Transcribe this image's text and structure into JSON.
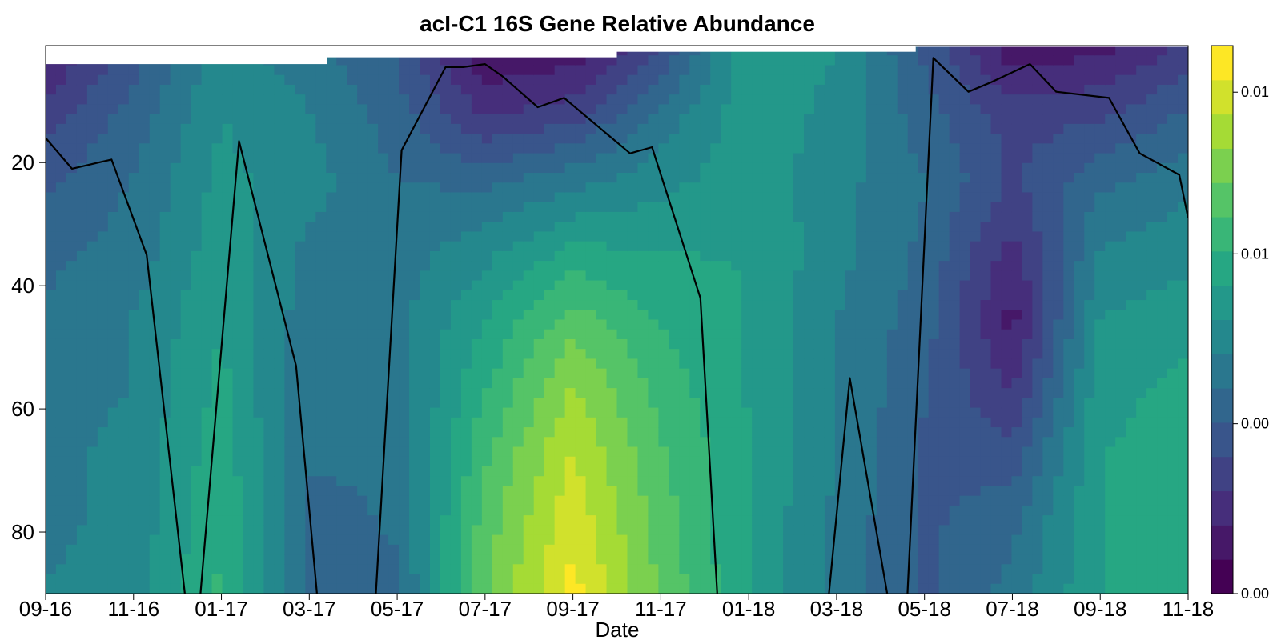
{
  "chart_data": {
    "type": "heatmap",
    "subtype": "filled-contour-with-line",
    "title": "acI-C1 16S Gene Relative Abundance",
    "xlabel": "Date",
    "ylabel": "",
    "x_tick_labels": [
      "09-16",
      "11-16",
      "01-17",
      "03-17",
      "05-17",
      "07-17",
      "09-17",
      "11-17",
      "01-18",
      "03-18",
      "05-18",
      "07-18",
      "09-18",
      "11-18"
    ],
    "y_ticks": [
      20,
      40,
      60,
      80
    ],
    "ylim": [
      90,
      1
    ],
    "y_inverted": true,
    "colormap": "viridis",
    "colors": [
      "#440154",
      "#472c7a",
      "#3b518b",
      "#2c718e",
      "#21908d",
      "#27ad81",
      "#5cc863",
      "#aadc32",
      "#fde725"
    ],
    "colorbar": {
      "tick_labels": [
        "0.00",
        "0.00",
        "0.01",
        "0.01"
      ],
      "levels": 16
    },
    "contour_columns": [
      {
        "x": 0.0,
        "values": [
          0.1,
          0.22,
          0.3,
          0.36,
          0.38,
          0.4,
          0.42,
          0.42,
          0.44
        ]
      },
      {
        "x": 1.0,
        "values": [
          0.28,
          0.34,
          0.38,
          0.4,
          0.44,
          0.44,
          0.46,
          0.46,
          0.48
        ]
      },
      {
        "x": 2.0,
        "values": [
          0.46,
          0.5,
          0.52,
          0.54,
          0.56,
          0.58,
          0.6,
          0.62,
          0.64
        ]
      },
      {
        "x": 3.0,
        "values": [
          0.4,
          0.44,
          0.46,
          0.42,
          0.4,
          0.38,
          0.38,
          0.36,
          0.36
        ]
      },
      {
        "x": 4.0,
        "values": [
          0.3,
          0.34,
          0.38,
          0.4,
          0.42,
          0.4,
          0.38,
          0.38,
          0.36
        ]
      },
      {
        "x": 5.0,
        "values": [
          0.06,
          0.18,
          0.36,
          0.48,
          0.56,
          0.62,
          0.68,
          0.72,
          0.74
        ]
      },
      {
        "x": 6.0,
        "values": [
          0.08,
          0.22,
          0.42,
          0.58,
          0.72,
          0.82,
          0.88,
          0.92,
          0.96
        ]
      },
      {
        "x": 7.0,
        "values": [
          0.24,
          0.4,
          0.48,
          0.56,
          0.62,
          0.66,
          0.7,
          0.72,
          0.74
        ]
      },
      {
        "x": 8.0,
        "values": [
          0.56,
          0.54,
          0.54,
          0.56,
          0.56,
          0.56,
          0.56,
          0.56,
          0.56
        ]
      },
      {
        "x": 9.0,
        "values": [
          0.5,
          0.48,
          0.46,
          0.46,
          0.44,
          0.44,
          0.44,
          0.42,
          0.42
        ]
      },
      {
        "x": 10.0,
        "values": [
          0.3,
          0.34,
          0.38,
          0.36,
          0.34,
          0.32,
          0.3,
          0.3,
          0.3
        ]
      },
      {
        "x": 11.0,
        "values": [
          0.08,
          0.22,
          0.24,
          0.16,
          0.1,
          0.18,
          0.28,
          0.36,
          0.4
        ]
      },
      {
        "x": 12.0,
        "values": [
          0.1,
          0.24,
          0.36,
          0.44,
          0.5,
          0.54,
          0.56,
          0.56,
          0.56
        ]
      },
      {
        "x": 13.0,
        "values": [
          0.2,
          0.32,
          0.42,
          0.48,
          0.54,
          0.58,
          0.6,
          0.6,
          0.6
        ]
      }
    ],
    "line_series": {
      "x": [
        0.0,
        0.3,
        0.75,
        1.15,
        1.6,
        1.75,
        2.2,
        2.85,
        3.1,
        3.75,
        4.05,
        4.55,
        4.75,
        5.0,
        5.2,
        5.6,
        5.9,
        6.65,
        6.9,
        7.45,
        7.65,
        8.9,
        9.15,
        9.6,
        9.8,
        10.1,
        10.5,
        10.75,
        11.2,
        11.5,
        12.1,
        12.45,
        12.9,
        13.0
      ],
      "y": [
        16,
        21,
        19.5,
        35,
        92,
        92,
        16.5,
        53,
        92,
        92,
        18,
        4.5,
        4.5,
        4,
        6,
        11,
        9.5,
        18.5,
        17.5,
        42,
        92,
        92,
        55,
        92,
        92,
        3,
        8.5,
        7,
        4,
        8.5,
        9.5,
        18.5,
        22,
        29
      ]
    }
  }
}
